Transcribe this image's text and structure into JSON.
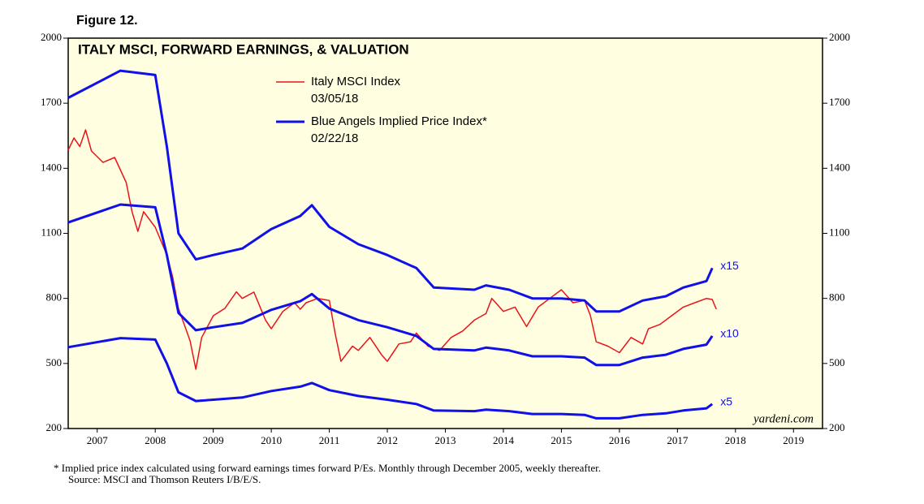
{
  "chart_data": {
    "type": "line",
    "figure_label": "Figure 12.",
    "title": "ITALY MSCI, FORWARD EARNINGS, & VALUATION",
    "xlim": [
      2007,
      2020
    ],
    "xticks": [
      {
        "value": 2007.5,
        "label": "2007"
      },
      {
        "value": 2008.5,
        "label": "2008"
      },
      {
        "value": 2009.5,
        "label": "2009"
      },
      {
        "value": 2010.5,
        "label": "2010"
      },
      {
        "value": 2011.5,
        "label": "2011"
      },
      {
        "value": 2012.5,
        "label": "2012"
      },
      {
        "value": 2013.5,
        "label": "2013"
      },
      {
        "value": 2014.5,
        "label": "2014"
      },
      {
        "value": 2015.5,
        "label": "2015"
      },
      {
        "value": 2016.5,
        "label": "2016"
      },
      {
        "value": 2017.5,
        "label": "2017"
      },
      {
        "value": 2018.5,
        "label": "2018"
      },
      {
        "value": 2019.5,
        "label": "2019"
      }
    ],
    "ylim": [
      200,
      2000
    ],
    "yticks": [
      200,
      500,
      800,
      1100,
      1400,
      1700,
      2000
    ],
    "y2lim": [
      200,
      2000
    ],
    "y2ticks": [
      200,
      500,
      800,
      1100,
      1400,
      1700,
      2000
    ],
    "background": "#fffee0",
    "series": [
      {
        "name": "Italy MSCI Index",
        "date": "03/05/18",
        "color": "#e8141b",
        "width": 1.5,
        "x": [
          2007.0,
          2007.1,
          2007.2,
          2007.3,
          2007.4,
          2007.6,
          2007.8,
          2008.0,
          2008.1,
          2008.2,
          2008.3,
          2008.5,
          2008.7,
          2008.8,
          2008.9,
          2009.0,
          2009.1,
          2009.2,
          2009.3,
          2009.5,
          2009.7,
          2009.9,
          2010.0,
          2010.2,
          2010.4,
          2010.5,
          2010.7,
          2010.9,
          2011.0,
          2011.1,
          2011.3,
          2011.5,
          2011.6,
          2011.7,
          2011.9,
          2012.0,
          2012.2,
          2012.4,
          2012.5,
          2012.7,
          2012.9,
          2013.0,
          2013.2,
          2013.4,
          2013.6,
          2013.8,
          2014.0,
          2014.2,
          2014.3,
          2014.5,
          2014.7,
          2014.9,
          2015.1,
          2015.3,
          2015.5,
          2015.7,
          2015.9,
          2016.0,
          2016.1,
          2016.3,
          2016.5,
          2016.7,
          2016.9,
          2017.0,
          2017.2,
          2017.4,
          2017.6,
          2017.8,
          2018.0,
          2018.1,
          2018.17
        ],
        "values": [
          1484,
          1540,
          1500,
          1577,
          1480,
          1427,
          1450,
          1334,
          1200,
          1109,
          1200,
          1128,
          1000,
          900,
          754,
          680,
          604,
          473,
          620,
          720,
          754,
          830,
          800,
          829,
          700,
          660,
          740,
          780,
          750,
          780,
          800,
          790,
          640,
          510,
          580,
          560,
          620,
          540,
          510,
          590,
          600,
          640,
          580,
          560,
          620,
          650,
          700,
          730,
          800,
          740,
          760,
          670,
          760,
          800,
          840,
          780,
          790,
          720,
          600,
          580,
          550,
          620,
          590,
          660,
          680,
          720,
          760,
          780,
          800,
          795,
          750
        ]
      },
      {
        "name": "Blue Angels Implied Price Index*",
        "date": "02/22/18",
        "color": "#1010e8",
        "width": 3,
        "label": "x15",
        "x": [
          2007.0,
          2007.9,
          2008.5,
          2008.7,
          2008.9,
          2009.2,
          2009.5,
          2010.0,
          2010.5,
          2011.0,
          2011.2,
          2011.5,
          2012.0,
          2012.5,
          2013.0,
          2013.3,
          2014.0,
          2014.2,
          2014.6,
          2015.0,
          2015.5,
          2015.9,
          2016.1,
          2016.5,
          2016.9,
          2017.3,
          2017.6,
          2018.0,
          2018.1
        ],
        "values": [
          1725,
          1850,
          1830,
          1500,
          1100,
          980,
          1000,
          1030,
          1120,
          1180,
          1230,
          1130,
          1050,
          1000,
          940,
          850,
          840,
          860,
          840,
          800,
          800,
          790,
          740,
          740,
          790,
          810,
          850,
          880,
          940
        ]
      },
      {
        "color": "#1010e8",
        "width": 3,
        "label": "x10",
        "x": [
          2007.0,
          2007.9,
          2008.5,
          2008.7,
          2008.9,
          2009.2,
          2009.5,
          2010.0,
          2010.5,
          2011.0,
          2011.2,
          2011.5,
          2012.0,
          2012.5,
          2013.0,
          2013.3,
          2014.0,
          2014.2,
          2014.6,
          2015.0,
          2015.5,
          2015.9,
          2016.1,
          2016.5,
          2016.9,
          2017.3,
          2017.6,
          2018.0,
          2018.1
        ],
        "values": [
          1150,
          1233,
          1220,
          1000,
          733,
          653,
          667,
          687,
          747,
          787,
          820,
          753,
          700,
          667,
          627,
          567,
          560,
          573,
          560,
          533,
          533,
          527,
          493,
          493,
          527,
          540,
          567,
          587,
          627
        ]
      },
      {
        "color": "#1010e8",
        "width": 3,
        "label": "x5",
        "x": [
          2007.0,
          2007.9,
          2008.5,
          2008.7,
          2008.9,
          2009.2,
          2009.5,
          2010.0,
          2010.5,
          2011.0,
          2011.2,
          2011.5,
          2012.0,
          2012.5,
          2013.0,
          2013.3,
          2014.0,
          2014.2,
          2014.6,
          2015.0,
          2015.5,
          2015.9,
          2016.1,
          2016.5,
          2016.9,
          2017.3,
          2017.6,
          2018.0,
          2018.1
        ],
        "values": [
          575,
          617,
          610,
          500,
          367,
          327,
          333,
          343,
          373,
          393,
          410,
          377,
          350,
          333,
          313,
          283,
          280,
          287,
          280,
          267,
          267,
          263,
          247,
          247,
          263,
          270,
          283,
          293,
          313
        ]
      }
    ],
    "source_mark": "yardeni.com",
    "footnotes": [
      "*   Implied price index calculated using forward earnings times forward P/Es. Monthly through December 2005, weekly thereafter.",
      "Source: MSCI and Thomson Reuters I/B/E/S."
    ]
  }
}
